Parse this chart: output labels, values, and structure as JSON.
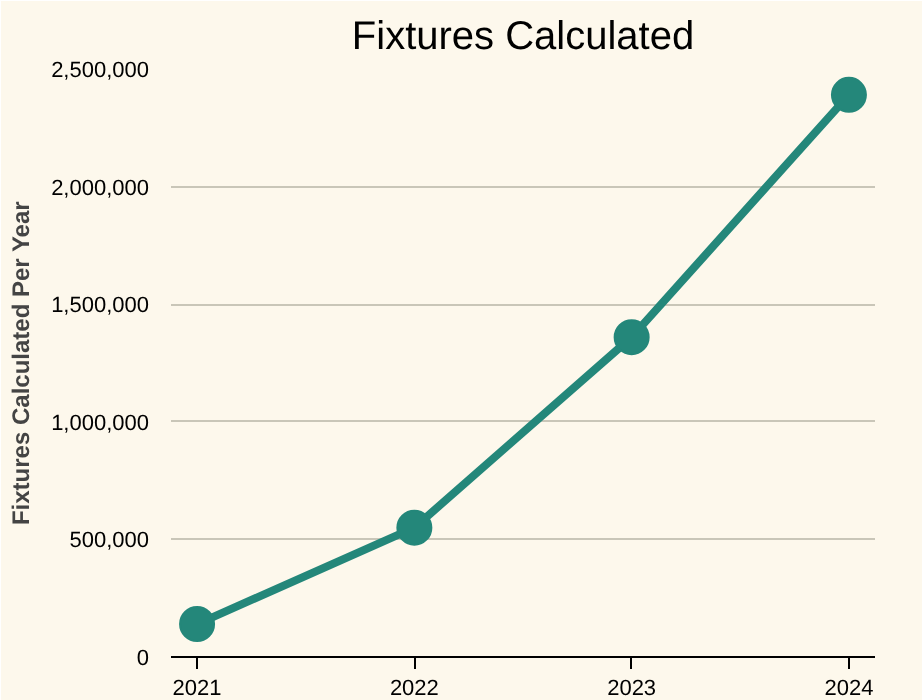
{
  "chart_data": {
    "type": "line",
    "title": "Fixtures Calculated",
    "ylabel": "Fixtures Calculated Per Year",
    "categories": [
      "2021",
      "2022",
      "2023",
      "2024"
    ],
    "series": [
      {
        "color": "#24877a",
        "values": [
          140000,
          550000,
          1360000,
          2390000
        ]
      }
    ],
    "ylim": [
      0,
      2500000
    ],
    "yticks": [
      {
        "value": 0,
        "label": "0"
      },
      {
        "value": 500000,
        "label": "500,000"
      },
      {
        "value": 1000000,
        "label": "1,000,000"
      },
      {
        "value": 1500000,
        "label": "1,500,000"
      },
      {
        "value": 2000000,
        "label": "2,000,000"
      },
      {
        "value": 2500000,
        "label": "2,500,000"
      }
    ],
    "grid": "y",
    "marker": "circle",
    "line_style": "solid"
  }
}
